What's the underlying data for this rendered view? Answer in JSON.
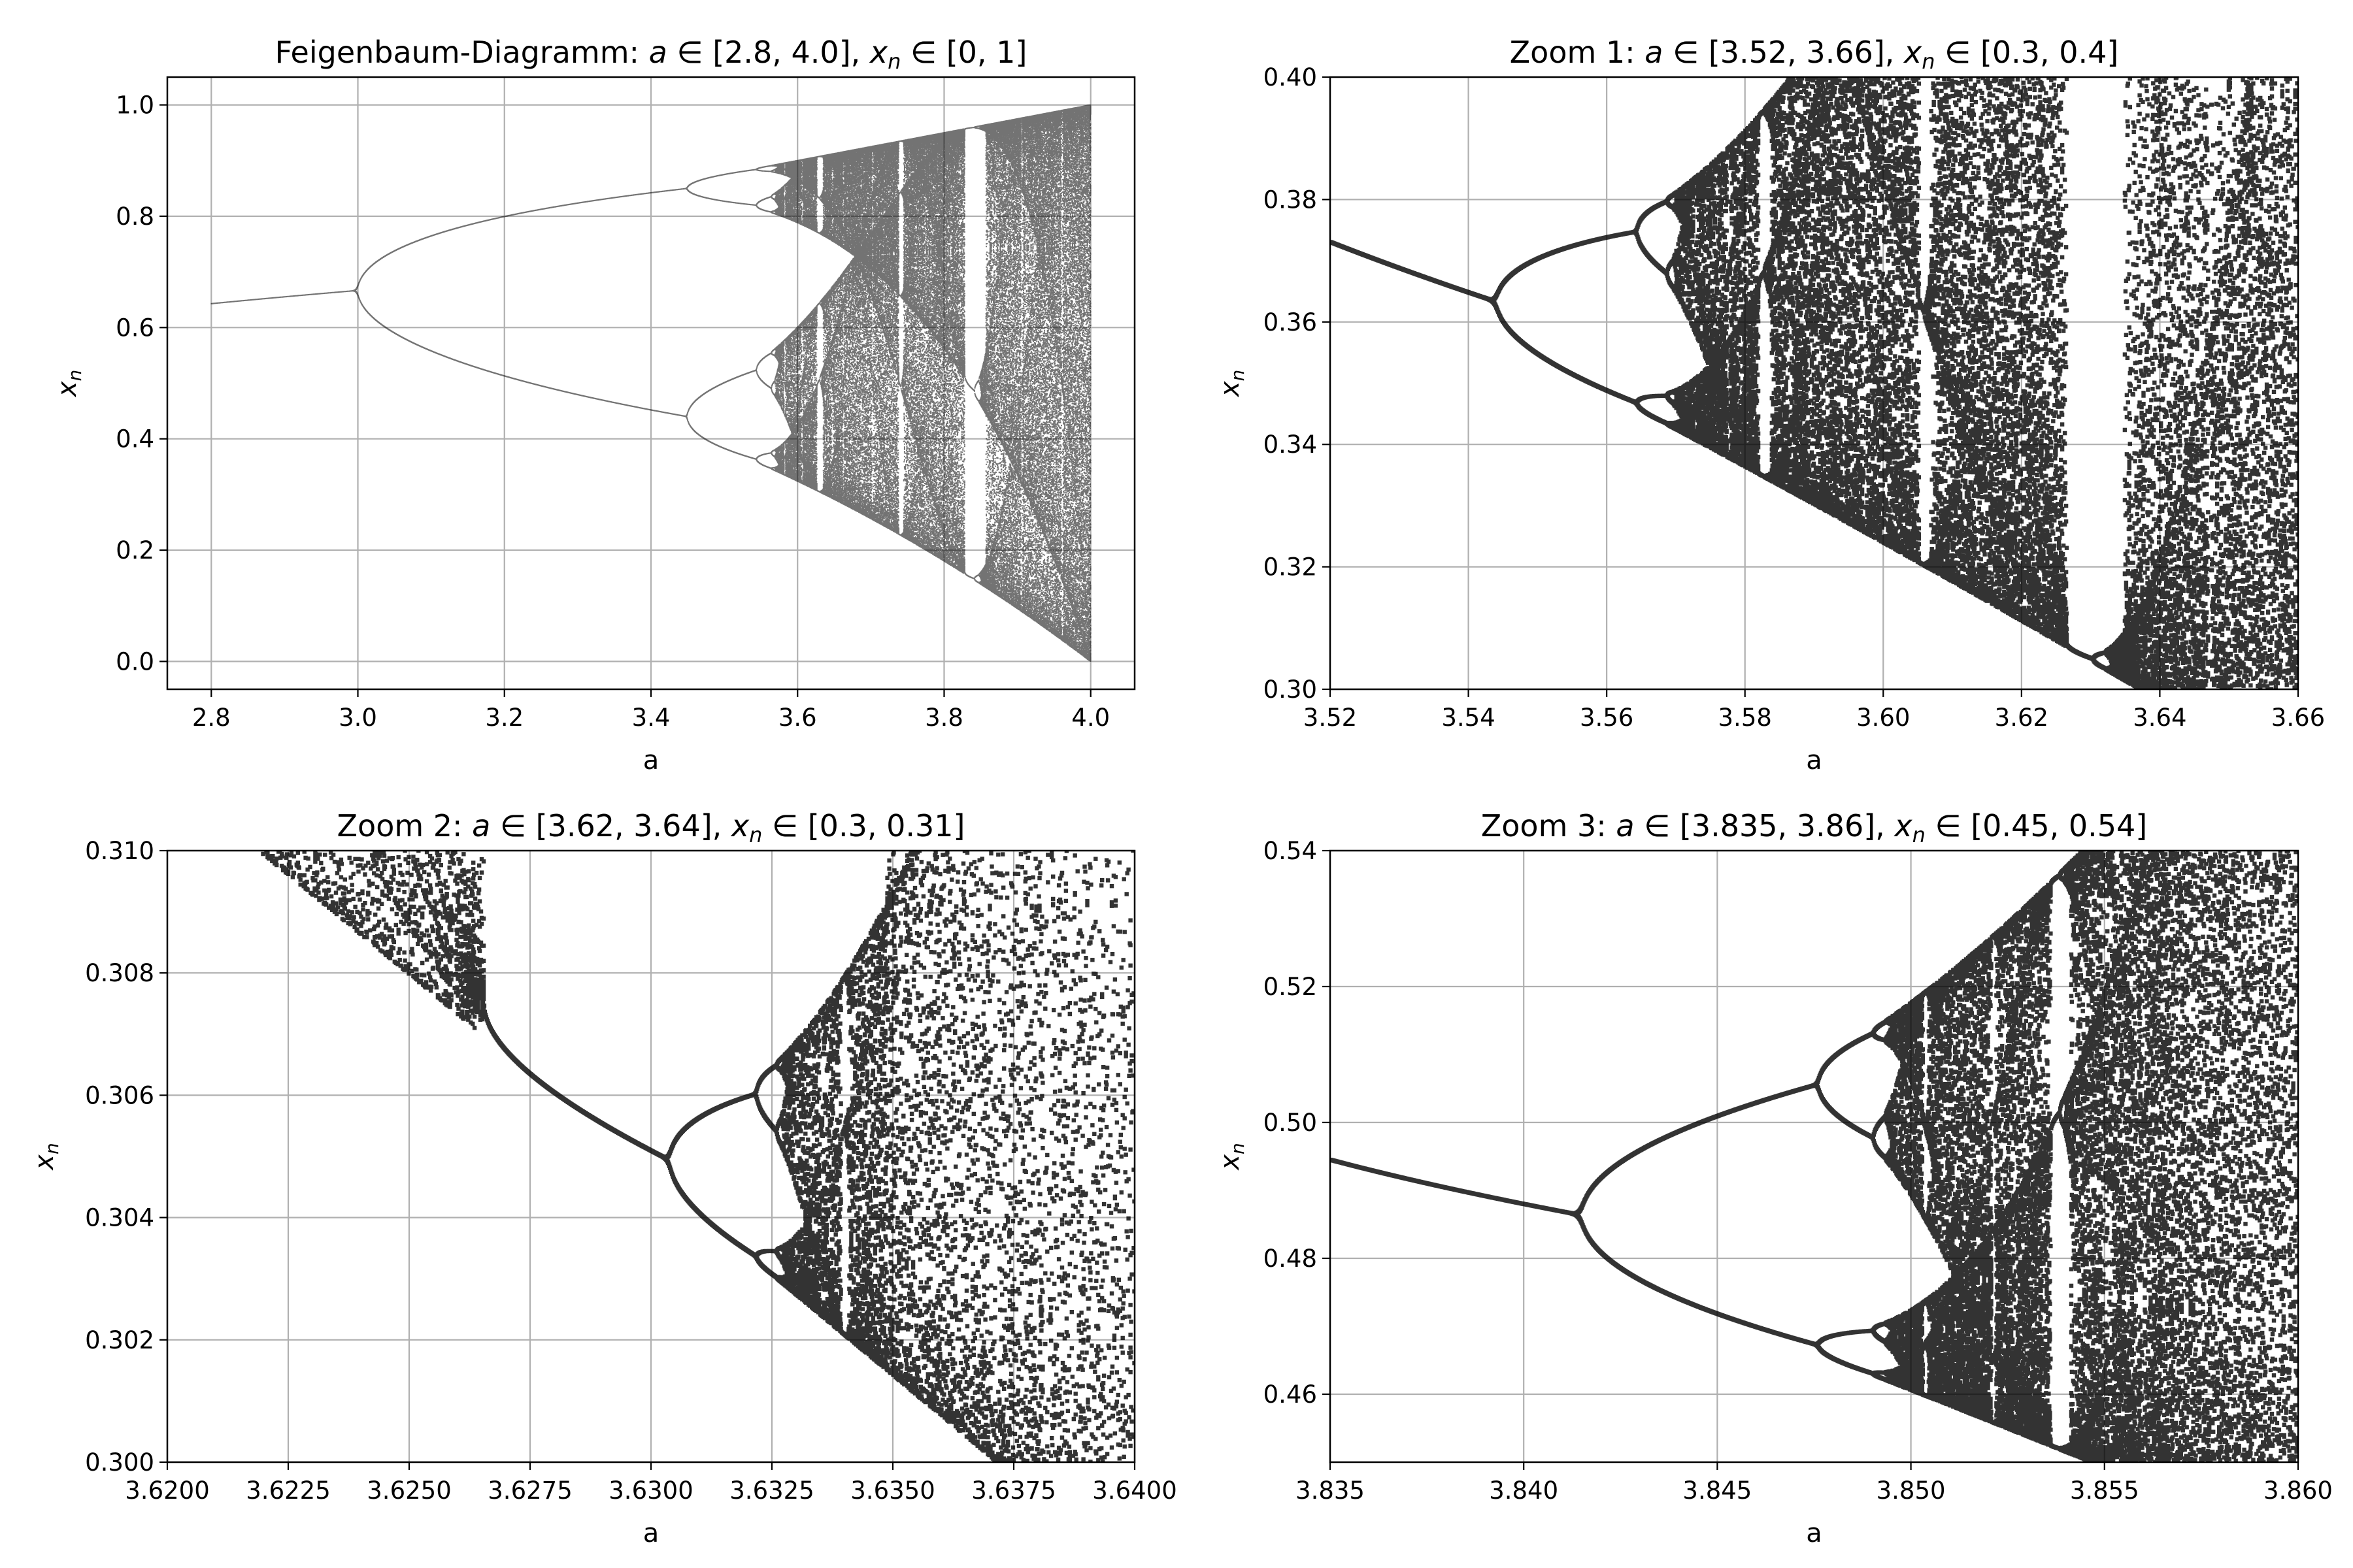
{
  "figure": {
    "background": "#ffffff",
    "point_color": "#000000"
  },
  "chart_data": [
    {
      "type": "scatter",
      "kind": "bifurcation-logistic-map",
      "title_parts": [
        "Feigenbaum-Diagramm: ",
        "a",
        " ∈ [2.8,  4.0],  ",
        "x",
        "n",
        " ∈ [0,  1]"
      ],
      "xlabel": "a",
      "ylabel_parts": [
        "x",
        "n"
      ],
      "xlim": [
        2.74,
        4.06
      ],
      "ylim": [
        -0.05,
        1.05
      ],
      "a_range": [
        2.8,
        4.0
      ],
      "xticks": [
        2.8,
        3.0,
        3.2,
        3.4,
        3.6,
        3.8,
        4.0
      ],
      "xtick_labels": [
        "2.8",
        "3.0",
        "3.2",
        "3.4",
        "3.6",
        "3.8",
        "4.0"
      ],
      "yticks": [
        0.0,
        0.2,
        0.4,
        0.6,
        0.8,
        1.0
      ],
      "ytick_labels": [
        "0.0",
        "0.2",
        "0.4",
        "0.6",
        "0.8",
        "1.0"
      ],
      "grid": true,
      "legend": "none"
    },
    {
      "type": "scatter",
      "kind": "bifurcation-logistic-map",
      "title_parts": [
        "Zoom 1: ",
        "a",
        " ∈ [3.52,  3.66],  ",
        "x",
        "n",
        " ∈ [0.3,  0.4]"
      ],
      "xlabel": "a",
      "ylabel_parts": [
        "x",
        "n"
      ],
      "xlim": [
        3.52,
        3.66
      ],
      "ylim": [
        0.3,
        0.4
      ],
      "a_range": [
        3.52,
        3.66
      ],
      "xticks": [
        3.52,
        3.54,
        3.56,
        3.58,
        3.6,
        3.62,
        3.64,
        3.66
      ],
      "xtick_labels": [
        "3.52",
        "3.54",
        "3.56",
        "3.58",
        "3.60",
        "3.62",
        "3.64",
        "3.66"
      ],
      "yticks": [
        0.3,
        0.32,
        0.34,
        0.36,
        0.38,
        0.4
      ],
      "ytick_labels": [
        "0.30",
        "0.32",
        "0.34",
        "0.36",
        "0.38",
        "0.40"
      ],
      "grid": true,
      "legend": "none"
    },
    {
      "type": "scatter",
      "kind": "bifurcation-logistic-map",
      "title_parts": [
        "Zoom 2: ",
        "a",
        " ∈ [3.62,  3.64],  ",
        "x",
        "n",
        " ∈ [0.3,  0.31]"
      ],
      "xlabel": "a",
      "ylabel_parts": [
        "x",
        "n"
      ],
      "xlim": [
        3.62,
        3.64
      ],
      "ylim": [
        0.3,
        0.31
      ],
      "a_range": [
        3.62,
        3.64
      ],
      "xticks": [
        3.62,
        3.6225,
        3.625,
        3.6275,
        3.63,
        3.6325,
        3.635,
        3.6375,
        3.64
      ],
      "xtick_labels": [
        "3.6200",
        "3.6225",
        "3.6250",
        "3.6275",
        "3.6300",
        "3.6325",
        "3.6350",
        "3.6375",
        "3.6400"
      ],
      "yticks": [
        0.3,
        0.302,
        0.304,
        0.306,
        0.308,
        0.31
      ],
      "ytick_labels": [
        "0.300",
        "0.302",
        "0.304",
        "0.306",
        "0.308",
        "0.310"
      ],
      "grid": true,
      "legend": "none"
    },
    {
      "type": "scatter",
      "kind": "bifurcation-logistic-map",
      "title_parts": [
        "Zoom 3: ",
        "a",
        " ∈ [3.835,  3.86],  ",
        "x",
        "n",
        " ∈ [0.45,  0.54]"
      ],
      "xlabel": "a",
      "ylabel_parts": [
        "x",
        "n"
      ],
      "xlim": [
        3.835,
        3.86
      ],
      "ylim": [
        0.45,
        0.54
      ],
      "a_range": [
        3.835,
        3.86
      ],
      "xticks": [
        3.835,
        3.84,
        3.845,
        3.85,
        3.855,
        3.86
      ],
      "xtick_labels": [
        "3.835",
        "3.840",
        "3.845",
        "3.850",
        "3.855",
        "3.860"
      ],
      "yticks": [
        0.46,
        0.48,
        0.5,
        0.52,
        0.54
      ],
      "ytick_labels": [
        "0.46",
        "0.48",
        "0.50",
        "0.52",
        "0.54"
      ],
      "grid": true,
      "legend": "none"
    }
  ]
}
